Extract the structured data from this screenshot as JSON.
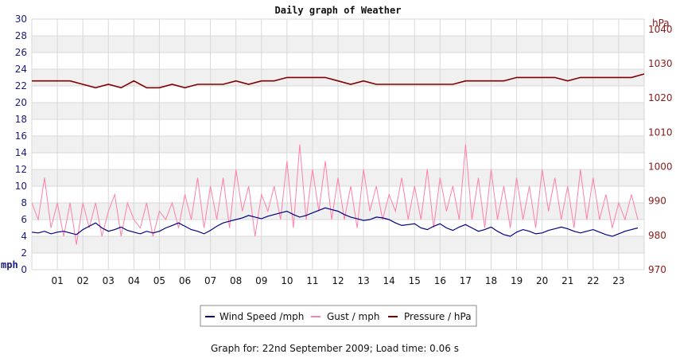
{
  "chart_data": {
    "type": "line",
    "title": "Daily graph of Weather",
    "footer": "Graph for: 22nd September 2009; Load time: 0.06 s",
    "y_left": {
      "unit": "mph",
      "range": [
        0,
        30
      ],
      "ticks": [
        "0",
        "2",
        "4",
        "6",
        "8",
        "10",
        "12",
        "14",
        "16",
        "18",
        "20",
        "22",
        "24",
        "26",
        "28",
        "30"
      ]
    },
    "y_right": {
      "unit": "hPa",
      "range": [
        970,
        1043
      ],
      "ticks": [
        "970",
        "980",
        "990",
        "1000",
        "1010",
        "1020",
        "1030",
        "1040"
      ]
    },
    "x": {
      "range_hours": [
        0,
        24
      ],
      "ticks": [
        "01",
        "02",
        "03",
        "04",
        "05",
        "06",
        "07",
        "08",
        "09",
        "10",
        "11",
        "12",
        "13",
        "14",
        "15",
        "16",
        "17",
        "18",
        "19",
        "20",
        "21",
        "22",
        "23"
      ]
    },
    "grid": true,
    "legend_position": "bottom-center",
    "colors": {
      "wind": "#000080",
      "gust": "#ff80a8",
      "pressure": "#800000",
      "band": "#f0f0f0",
      "grid": "#d8d8d8"
    },
    "series": [
      {
        "name": "Wind Speed /mph",
        "axis": "left",
        "x": [
          0,
          0.25,
          0.5,
          0.75,
          1,
          1.25,
          1.5,
          1.75,
          2,
          2.25,
          2.5,
          2.75,
          3,
          3.25,
          3.5,
          3.75,
          4,
          4.25,
          4.5,
          4.75,
          5,
          5.25,
          5.5,
          5.75,
          6,
          6.25,
          6.5,
          6.75,
          7,
          7.25,
          7.5,
          7.75,
          8,
          8.25,
          8.5,
          8.75,
          9,
          9.25,
          9.5,
          9.75,
          10,
          10.25,
          10.5,
          10.75,
          11,
          11.25,
          11.5,
          11.75,
          12,
          12.25,
          12.5,
          12.75,
          13,
          13.25,
          13.5,
          13.75,
          14,
          14.25,
          14.5,
          14.75,
          15,
          15.25,
          15.5,
          15.75,
          16,
          16.25,
          16.5,
          16.75,
          17,
          17.25,
          17.5,
          17.75,
          18,
          18.25,
          18.5,
          18.75,
          19,
          19.25,
          19.5,
          19.75,
          20,
          20.25,
          20.5,
          20.75,
          21,
          21.25,
          21.5,
          21.75,
          22,
          22.25,
          22.5,
          22.75,
          23,
          23.25,
          23.5,
          23.75
        ],
        "values": [
          4.5,
          4.4,
          4.6,
          4.3,
          4.5,
          4.6,
          4.4,
          4.2,
          4.8,
          5.2,
          5.6,
          5.0,
          4.6,
          4.8,
          5.1,
          4.7,
          4.5,
          4.3,
          4.6,
          4.4,
          4.6,
          5.0,
          5.3,
          5.6,
          5.2,
          4.8,
          4.6,
          4.3,
          4.7,
          5.2,
          5.6,
          5.8,
          6.0,
          6.2,
          6.5,
          6.3,
          6.1,
          6.4,
          6.6,
          6.8,
          7.0,
          6.6,
          6.3,
          6.5,
          6.8,
          7.1,
          7.4,
          7.2,
          7.0,
          6.6,
          6.3,
          6.1,
          5.9,
          6.0,
          6.3,
          6.2,
          6.0,
          5.6,
          5.3,
          5.4,
          5.5,
          5.0,
          4.8,
          5.2,
          5.5,
          5.0,
          4.7,
          5.1,
          5.4,
          5.0,
          4.6,
          4.8,
          5.1,
          4.6,
          4.2,
          4.0,
          4.5,
          4.8,
          4.6,
          4.3,
          4.4,
          4.7,
          4.9,
          5.1,
          4.9,
          4.6,
          4.4,
          4.6,
          4.8,
          4.5,
          4.2,
          4.0,
          4.3,
          4.6,
          4.8,
          5.0
        ]
      },
      {
        "name": "Gust / mph",
        "axis": "left",
        "x": [
          0,
          0.25,
          0.5,
          0.75,
          1,
          1.25,
          1.5,
          1.75,
          2,
          2.25,
          2.5,
          2.75,
          3,
          3.25,
          3.5,
          3.75,
          4,
          4.25,
          4.5,
          4.75,
          5,
          5.25,
          5.5,
          5.75,
          6,
          6.25,
          6.5,
          6.75,
          7,
          7.25,
          7.5,
          7.75,
          8,
          8.25,
          8.5,
          8.75,
          9,
          9.25,
          9.5,
          9.75,
          10,
          10.25,
          10.5,
          10.75,
          11,
          11.25,
          11.5,
          11.75,
          12,
          12.25,
          12.5,
          12.75,
          13,
          13.25,
          13.5,
          13.75,
          14,
          14.25,
          14.5,
          14.75,
          15,
          15.25,
          15.5,
          15.75,
          16,
          16.25,
          16.5,
          16.75,
          17,
          17.25,
          17.5,
          17.75,
          18,
          18.25,
          18.5,
          18.75,
          19,
          19.25,
          19.5,
          19.75,
          20,
          20.25,
          20.5,
          20.75,
          21,
          21.25,
          21.5,
          21.75,
          22,
          22.25,
          22.5,
          22.75,
          23,
          23.25,
          23.5,
          23.75
        ],
        "values": [
          8,
          6,
          11,
          5,
          8,
          4,
          8,
          3,
          8,
          5,
          8,
          4,
          7,
          9,
          4,
          8,
          6,
          5,
          8,
          4,
          7,
          6,
          8,
          5,
          9,
          6,
          11,
          5,
          10,
          6,
          11,
          5,
          12,
          7,
          10,
          4,
          9,
          7,
          10,
          6,
          13,
          5,
          15,
          6,
          12,
          7,
          13,
          6,
          11,
          6,
          10,
          5,
          12,
          7,
          10,
          6,
          9,
          7,
          11,
          6,
          10,
          6,
          12,
          5,
          11,
          7,
          10,
          6,
          15,
          6,
          11,
          5,
          12,
          6,
          10,
          5,
          11,
          6,
          10,
          5,
          12,
          7,
          11,
          6,
          10,
          5,
          12,
          6,
          11,
          6,
          9,
          5,
          8,
          6,
          9,
          6
        ]
      },
      {
        "name": "Pressure / hPa",
        "axis": "right",
        "x": [
          0,
          0.5,
          1,
          1.5,
          2,
          2.5,
          3,
          3.5,
          4,
          4.5,
          5,
          5.5,
          6,
          6.5,
          7,
          7.5,
          8,
          8.5,
          9,
          9.5,
          10,
          10.5,
          11,
          11.5,
          12,
          12.5,
          13,
          13.5,
          14,
          14.5,
          15,
          15.5,
          16,
          16.5,
          17,
          17.5,
          18,
          18.5,
          19,
          19.5,
          20,
          20.5,
          21,
          21.5,
          22,
          22.5,
          23,
          23.5,
          24
        ],
        "values": [
          1025,
          1025,
          1025,
          1025,
          1024,
          1023,
          1024,
          1023,
          1025,
          1023,
          1023,
          1024,
          1023,
          1024,
          1024,
          1024,
          1025,
          1024,
          1025,
          1025,
          1026,
          1026,
          1026,
          1026,
          1025,
          1024,
          1025,
          1024,
          1024,
          1024,
          1024,
          1024,
          1024,
          1024,
          1025,
          1025,
          1025,
          1025,
          1026,
          1026,
          1026,
          1026,
          1025,
          1026,
          1026,
          1026,
          1026,
          1026,
          1027
        ]
      }
    ]
  }
}
